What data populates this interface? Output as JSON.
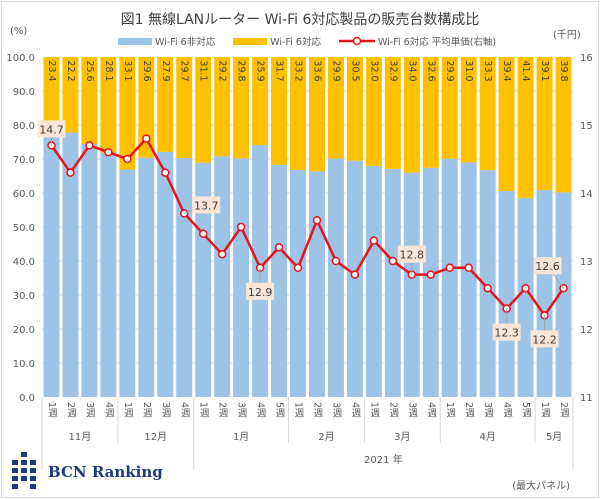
{
  "chart_data": {
    "type": "bar",
    "title": "図1 無線LANルーター Wi-Fi 6対応製品の販売台数構成比",
    "left_unit": "(%)",
    "right_unit": "(千円)",
    "ylim": [
      0,
      100
    ],
    "y_ticks": [
      "0.0",
      "10.0",
      "20.0",
      "30.0",
      "40.0",
      "50.0",
      "60.0",
      "70.0",
      "80.0",
      "90.0",
      "100.0"
    ],
    "y2lim": [
      11,
      16
    ],
    "y2_ticks": [
      "11",
      "12",
      "13",
      "14",
      "15",
      "16"
    ],
    "legend": [
      "Wi-Fi 6非対応",
      "Wi-Fi 6対応",
      "Wi-Fi 6対応 平均単価(右軸)"
    ],
    "colors": {
      "non_wifi6": "#9dc3e6",
      "wifi6": "#ffc000",
      "price": "#e8141b"
    },
    "categories": [
      "1週",
      "2週",
      "3週",
      "4週",
      "1週",
      "2週",
      "3週",
      "4週",
      "1週",
      "2週",
      "3週",
      "4週",
      "5週",
      "1週",
      "2週",
      "3週",
      "4週",
      "1週",
      "2週",
      "3週",
      "4週",
      "1週",
      "2週",
      "3週",
      "4週",
      "5週",
      "1週",
      "2週"
    ],
    "months": [
      {
        "label": "11月",
        "count": 4
      },
      {
        "label": "12月",
        "count": 4
      },
      {
        "label": "1月",
        "count": 5
      },
      {
        "label": "2月",
        "count": 4
      },
      {
        "label": "3月",
        "count": 4
      },
      {
        "label": "4月",
        "count": 5
      },
      {
        "label": "5月",
        "count": 2
      }
    ],
    "year_label": "2021 年",
    "series": [
      {
        "name": "Wi-Fi 6対応",
        "values": [
          23.4,
          22.2,
          25.6,
          28.1,
          33.1,
          29.6,
          27.9,
          29.7,
          31.1,
          29.2,
          29.8,
          25.9,
          31.7,
          33.2,
          33.6,
          29.9,
          30.5,
          32.0,
          32.9,
          34.0,
          32.6,
          29.9,
          31.0,
          33.3,
          39.4,
          41.4,
          39.1,
          39.8
        ]
      },
      {
        "name": "Wi-Fi 6対応 平均単価(右軸)",
        "axis": "right",
        "values": [
          14.7,
          14.3,
          14.7,
          14.6,
          14.5,
          14.8,
          14.3,
          13.7,
          13.4,
          13.1,
          13.5,
          12.9,
          13.2,
          12.9,
          13.6,
          13.0,
          12.8,
          13.3,
          13.0,
          12.8,
          12.8,
          12.9,
          12.9,
          12.6,
          12.3,
          12.6,
          12.2,
          12.6
        ]
      }
    ],
    "price_callouts": [
      {
        "index": 0,
        "label": "14.7"
      },
      {
        "index": 7,
        "label": "13.7"
      },
      {
        "index": 11,
        "label": "12.9"
      },
      {
        "index": 19,
        "label": "12.8"
      },
      {
        "index": 24,
        "label": "12.3"
      },
      {
        "index": 26,
        "label": "12.2"
      },
      {
        "index": 27,
        "label": "12.6"
      }
    ]
  },
  "footer": {
    "brand": "BCN Ranking",
    "note": "(最大パネル)"
  }
}
